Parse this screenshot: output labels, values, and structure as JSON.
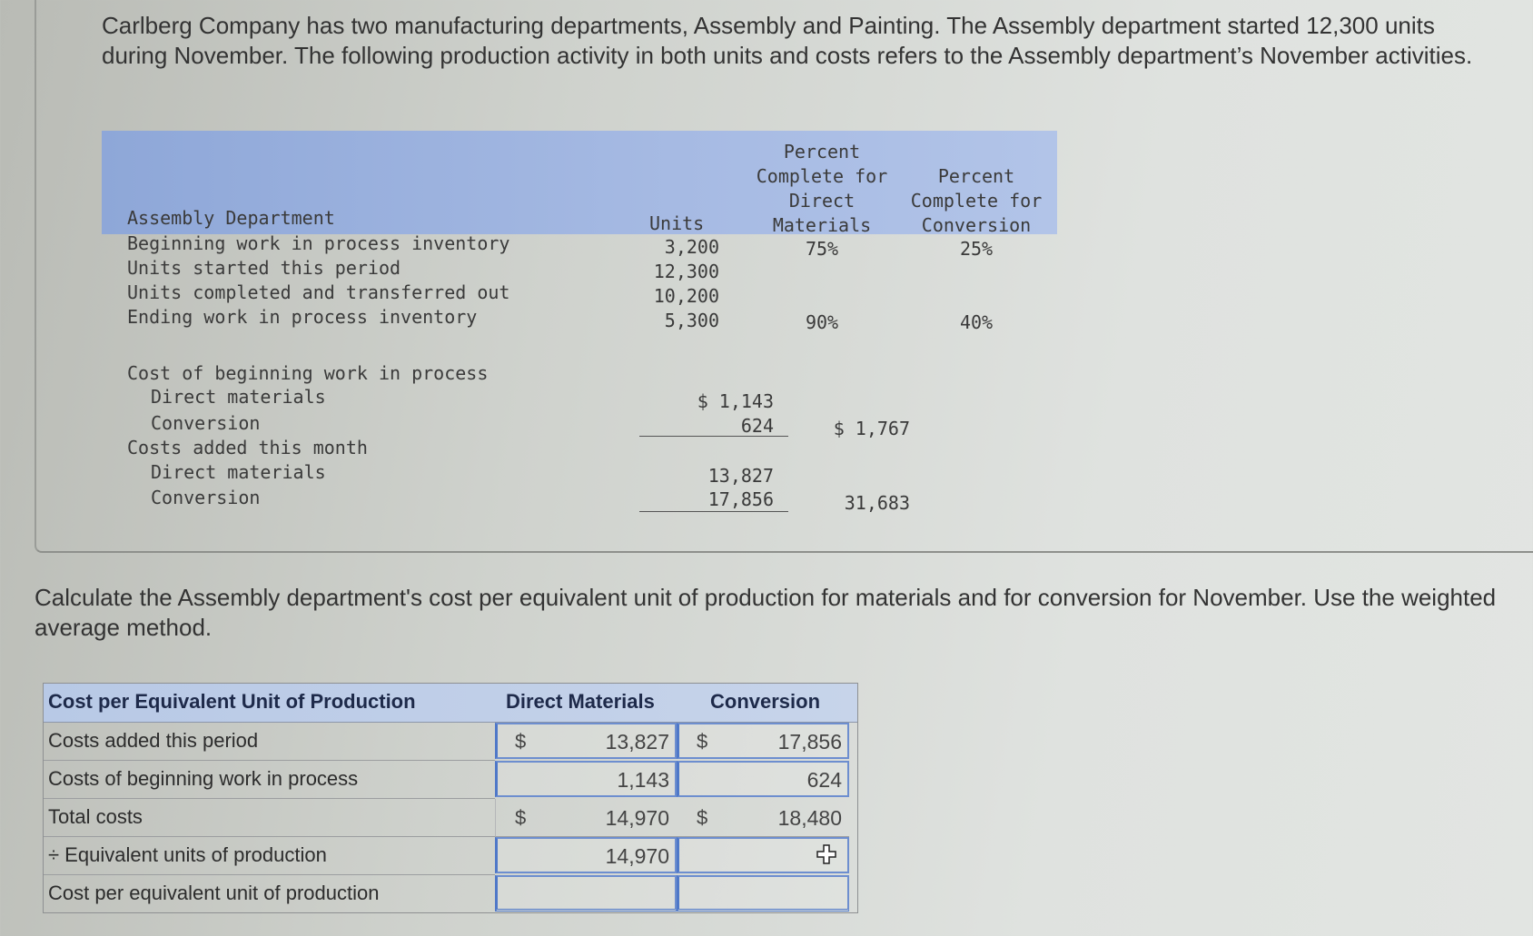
{
  "intro_text": "Carlberg Company has two manufacturing departments, Assembly and Painting. The Assembly department started 12,300 units during November. The following production activity in both units and costs refers to the Assembly department’s November activities.",
  "dept_table": {
    "title": "Assembly Department",
    "col_units": "Units",
    "col_dm": [
      "Percent",
      "Complete for",
      "Direct",
      "Materials"
    ],
    "col_conv": [
      "Percent",
      "Complete for",
      "Conversion"
    ],
    "rows": [
      {
        "label": "Beginning work in process inventory",
        "units": "3,200",
        "dm": "75%",
        "conv": "25%"
      },
      {
        "label": "Units started this period",
        "units": "12,300",
        "dm": "",
        "conv": ""
      },
      {
        "label": "Units completed and transferred out",
        "units": "10,200",
        "dm": "",
        "conv": ""
      },
      {
        "label": "Ending work in process inventory",
        "units": "5,300",
        "dm": "90%",
        "conv": "40%"
      }
    ],
    "cost_section": {
      "beg_label": "Cost of beginning work in process",
      "beg_dm_label": "Direct materials",
      "beg_dm": "$ 1,143",
      "beg_conv_label": "Conversion",
      "beg_conv": "624",
      "beg_total": "$ 1,767",
      "added_label": "Costs added this month",
      "add_dm_label": "Direct materials",
      "add_dm": "13,827",
      "add_conv_label": "Conversion",
      "add_conv": "17,856",
      "add_total": "31,683"
    }
  },
  "question_text": "Calculate the Assembly department's cost per equivalent unit of production for materials and for conversion for November. Use the weighted average method.",
  "answer_table": {
    "header": "Cost per Equivalent Unit of Production",
    "col_dm": "Direct Materials",
    "col_conv": "Conversion",
    "dollar": "$",
    "rows": [
      {
        "label": "Costs added this period",
        "dm": "13,827",
        "conv": "17,856"
      },
      {
        "label": "Costs of beginning work in process",
        "dm": "1,143",
        "conv": "624"
      },
      {
        "label": "Total costs",
        "dm": "14,970",
        "conv": "18,480"
      },
      {
        "label": "÷ Equivalent units of production",
        "dm": "14,970",
        "conv": ""
      },
      {
        "label": "Cost per equivalent unit of production",
        "dm": "",
        "conv": ""
      }
    ]
  },
  "icons": {
    "cursor": "plus-cursor-icon"
  }
}
